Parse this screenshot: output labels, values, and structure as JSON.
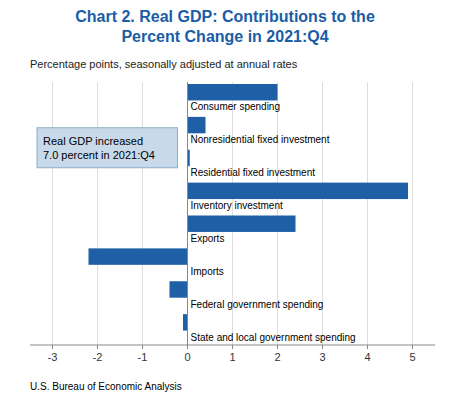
{
  "chart_data": {
    "type": "bar",
    "orientation": "horizontal",
    "title": "Chart 2. Real GDP: Contributions to the\nPercent Change in 2021:Q4",
    "subtitle": "Percentage points, seasonally adjusted at annual rates",
    "footer": "U.S. Bureau of Economic Analysis",
    "annotation": "Real GDP increased\n7.0 percent in 2021:Q4",
    "categories": [
      "Consumer spending",
      "Nonresidential fixed investment",
      "Residential fixed investment",
      "Inventory investment",
      "Exports",
      "Imports",
      "Federal government spending",
      "State and local government spending"
    ],
    "values": [
      2.0,
      0.4,
      0.05,
      4.9,
      2.4,
      -2.2,
      -0.4,
      -0.1
    ],
    "color": "#1F5FA6",
    "xlim": [
      -3.5,
      5.5
    ],
    "xticks": [
      -3,
      -2,
      -1,
      0,
      1,
      2,
      3,
      4,
      5
    ],
    "grid": true
  }
}
